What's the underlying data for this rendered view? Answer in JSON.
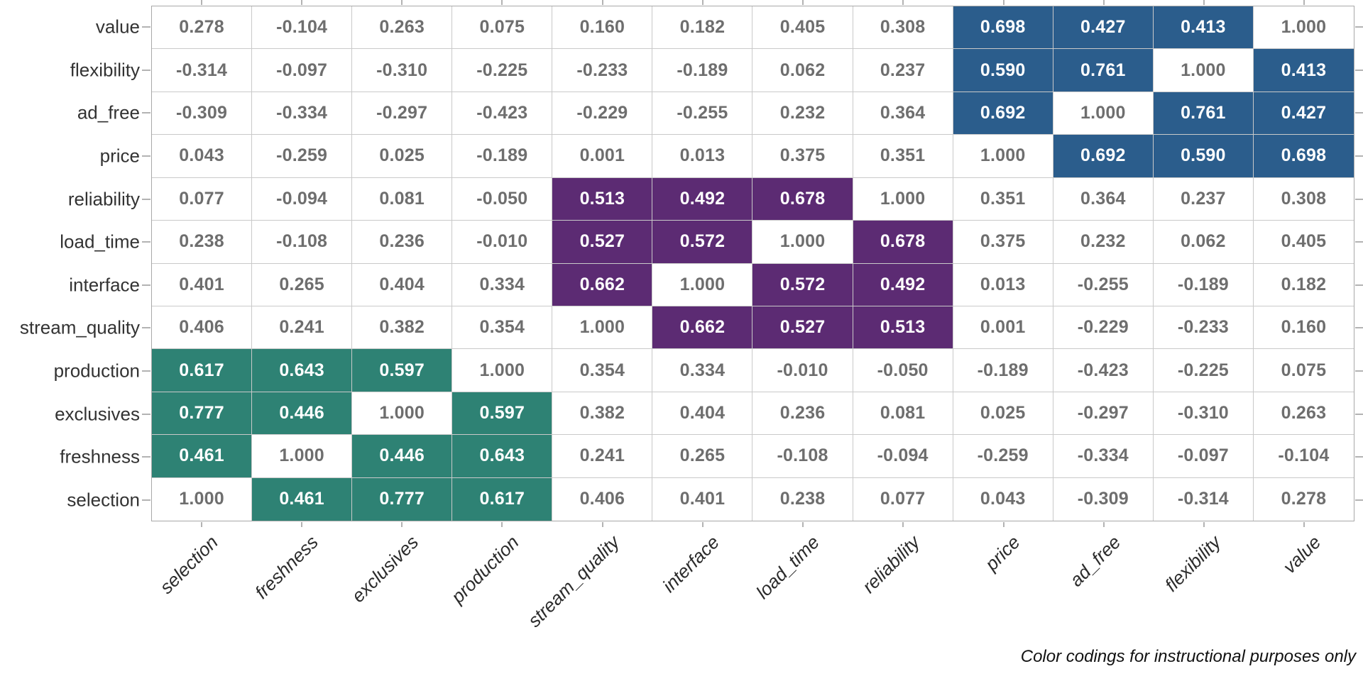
{
  "note": "Color codings for instructional purposes only",
  "chart_data": {
    "type": "heatmap",
    "title": "",
    "subtitle": "",
    "xlabel": "",
    "ylabel": "",
    "grid": "on",
    "x_tick_rotation": 45,
    "columns": [
      "selection",
      "freshness",
      "exclusives",
      "production",
      "stream_quality",
      "interface",
      "load_time",
      "reliability",
      "price",
      "ad_free",
      "flexibility",
      "value"
    ],
    "rows": [
      "value",
      "flexibility",
      "ad_free",
      "price",
      "reliability",
      "load_time",
      "interface",
      "stream_quality",
      "production",
      "exclusives",
      "freshness",
      "selection"
    ],
    "matrix": [
      [
        "0.278",
        "-0.104",
        "0.263",
        "0.075",
        "0.160",
        "0.182",
        "0.405",
        "0.308",
        "0.698",
        "0.427",
        "0.413",
        "1.000"
      ],
      [
        "-0.314",
        "-0.097",
        "-0.310",
        "-0.225",
        "-0.233",
        "-0.189",
        "0.062",
        "0.237",
        "0.590",
        "0.761",
        "1.000",
        "0.413"
      ],
      [
        "-0.309",
        "-0.334",
        "-0.297",
        "-0.423",
        "-0.229",
        "-0.255",
        "0.232",
        "0.364",
        "0.692",
        "1.000",
        "0.761",
        "0.427"
      ],
      [
        "0.043",
        "-0.259",
        "0.025",
        "-0.189",
        "0.001",
        "0.013",
        "0.375",
        "0.351",
        "1.000",
        "0.692",
        "0.590",
        "0.698"
      ],
      [
        "0.077",
        "-0.094",
        "0.081",
        "-0.050",
        "0.513",
        "0.492",
        "0.678",
        "1.000",
        "0.351",
        "0.364",
        "0.237",
        "0.308"
      ],
      [
        "0.238",
        "-0.108",
        "0.236",
        "-0.010",
        "0.527",
        "0.572",
        "1.000",
        "0.678",
        "0.375",
        "0.232",
        "0.062",
        "0.405"
      ],
      [
        "0.401",
        "0.265",
        "0.404",
        "0.334",
        "0.662",
        "1.000",
        "0.572",
        "0.492",
        "0.013",
        "-0.255",
        "-0.189",
        "0.182"
      ],
      [
        "0.406",
        "0.241",
        "0.382",
        "0.354",
        "1.000",
        "0.662",
        "0.527",
        "0.513",
        "0.001",
        "-0.229",
        "-0.233",
        "0.160"
      ],
      [
        "0.617",
        "0.643",
        "0.597",
        "1.000",
        "0.354",
        "0.334",
        "-0.010",
        "-0.050",
        "-0.189",
        "-0.423",
        "-0.225",
        "0.075"
      ],
      [
        "0.777",
        "0.446",
        "1.000",
        "0.597",
        "0.382",
        "0.404",
        "0.236",
        "0.081",
        "0.025",
        "-0.297",
        "-0.310",
        "0.263"
      ],
      [
        "0.461",
        "1.000",
        "0.446",
        "0.643",
        "0.241",
        "0.265",
        "-0.108",
        "-0.094",
        "-0.259",
        "-0.334",
        "-0.097",
        "-0.104"
      ],
      [
        "1.000",
        "0.461",
        "0.777",
        "0.617",
        "0.406",
        "0.401",
        "0.238",
        "0.077",
        "0.043",
        "-0.309",
        "-0.314",
        "0.278"
      ]
    ],
    "color_groups": [
      {
        "color": "#2e8274",
        "members": [
          "selection",
          "freshness",
          "exclusives",
          "production"
        ]
      },
      {
        "color": "#5c2b73",
        "members": [
          "stream_quality",
          "interface",
          "load_time",
          "reliability"
        ]
      },
      {
        "color": "#2b5d8c",
        "members": [
          "price",
          "ad_free",
          "flexibility",
          "value"
        ]
      }
    ],
    "cell_text_color_plain": "#6e6e6e",
    "cell_text_color_highlight": "#ffffff"
  }
}
